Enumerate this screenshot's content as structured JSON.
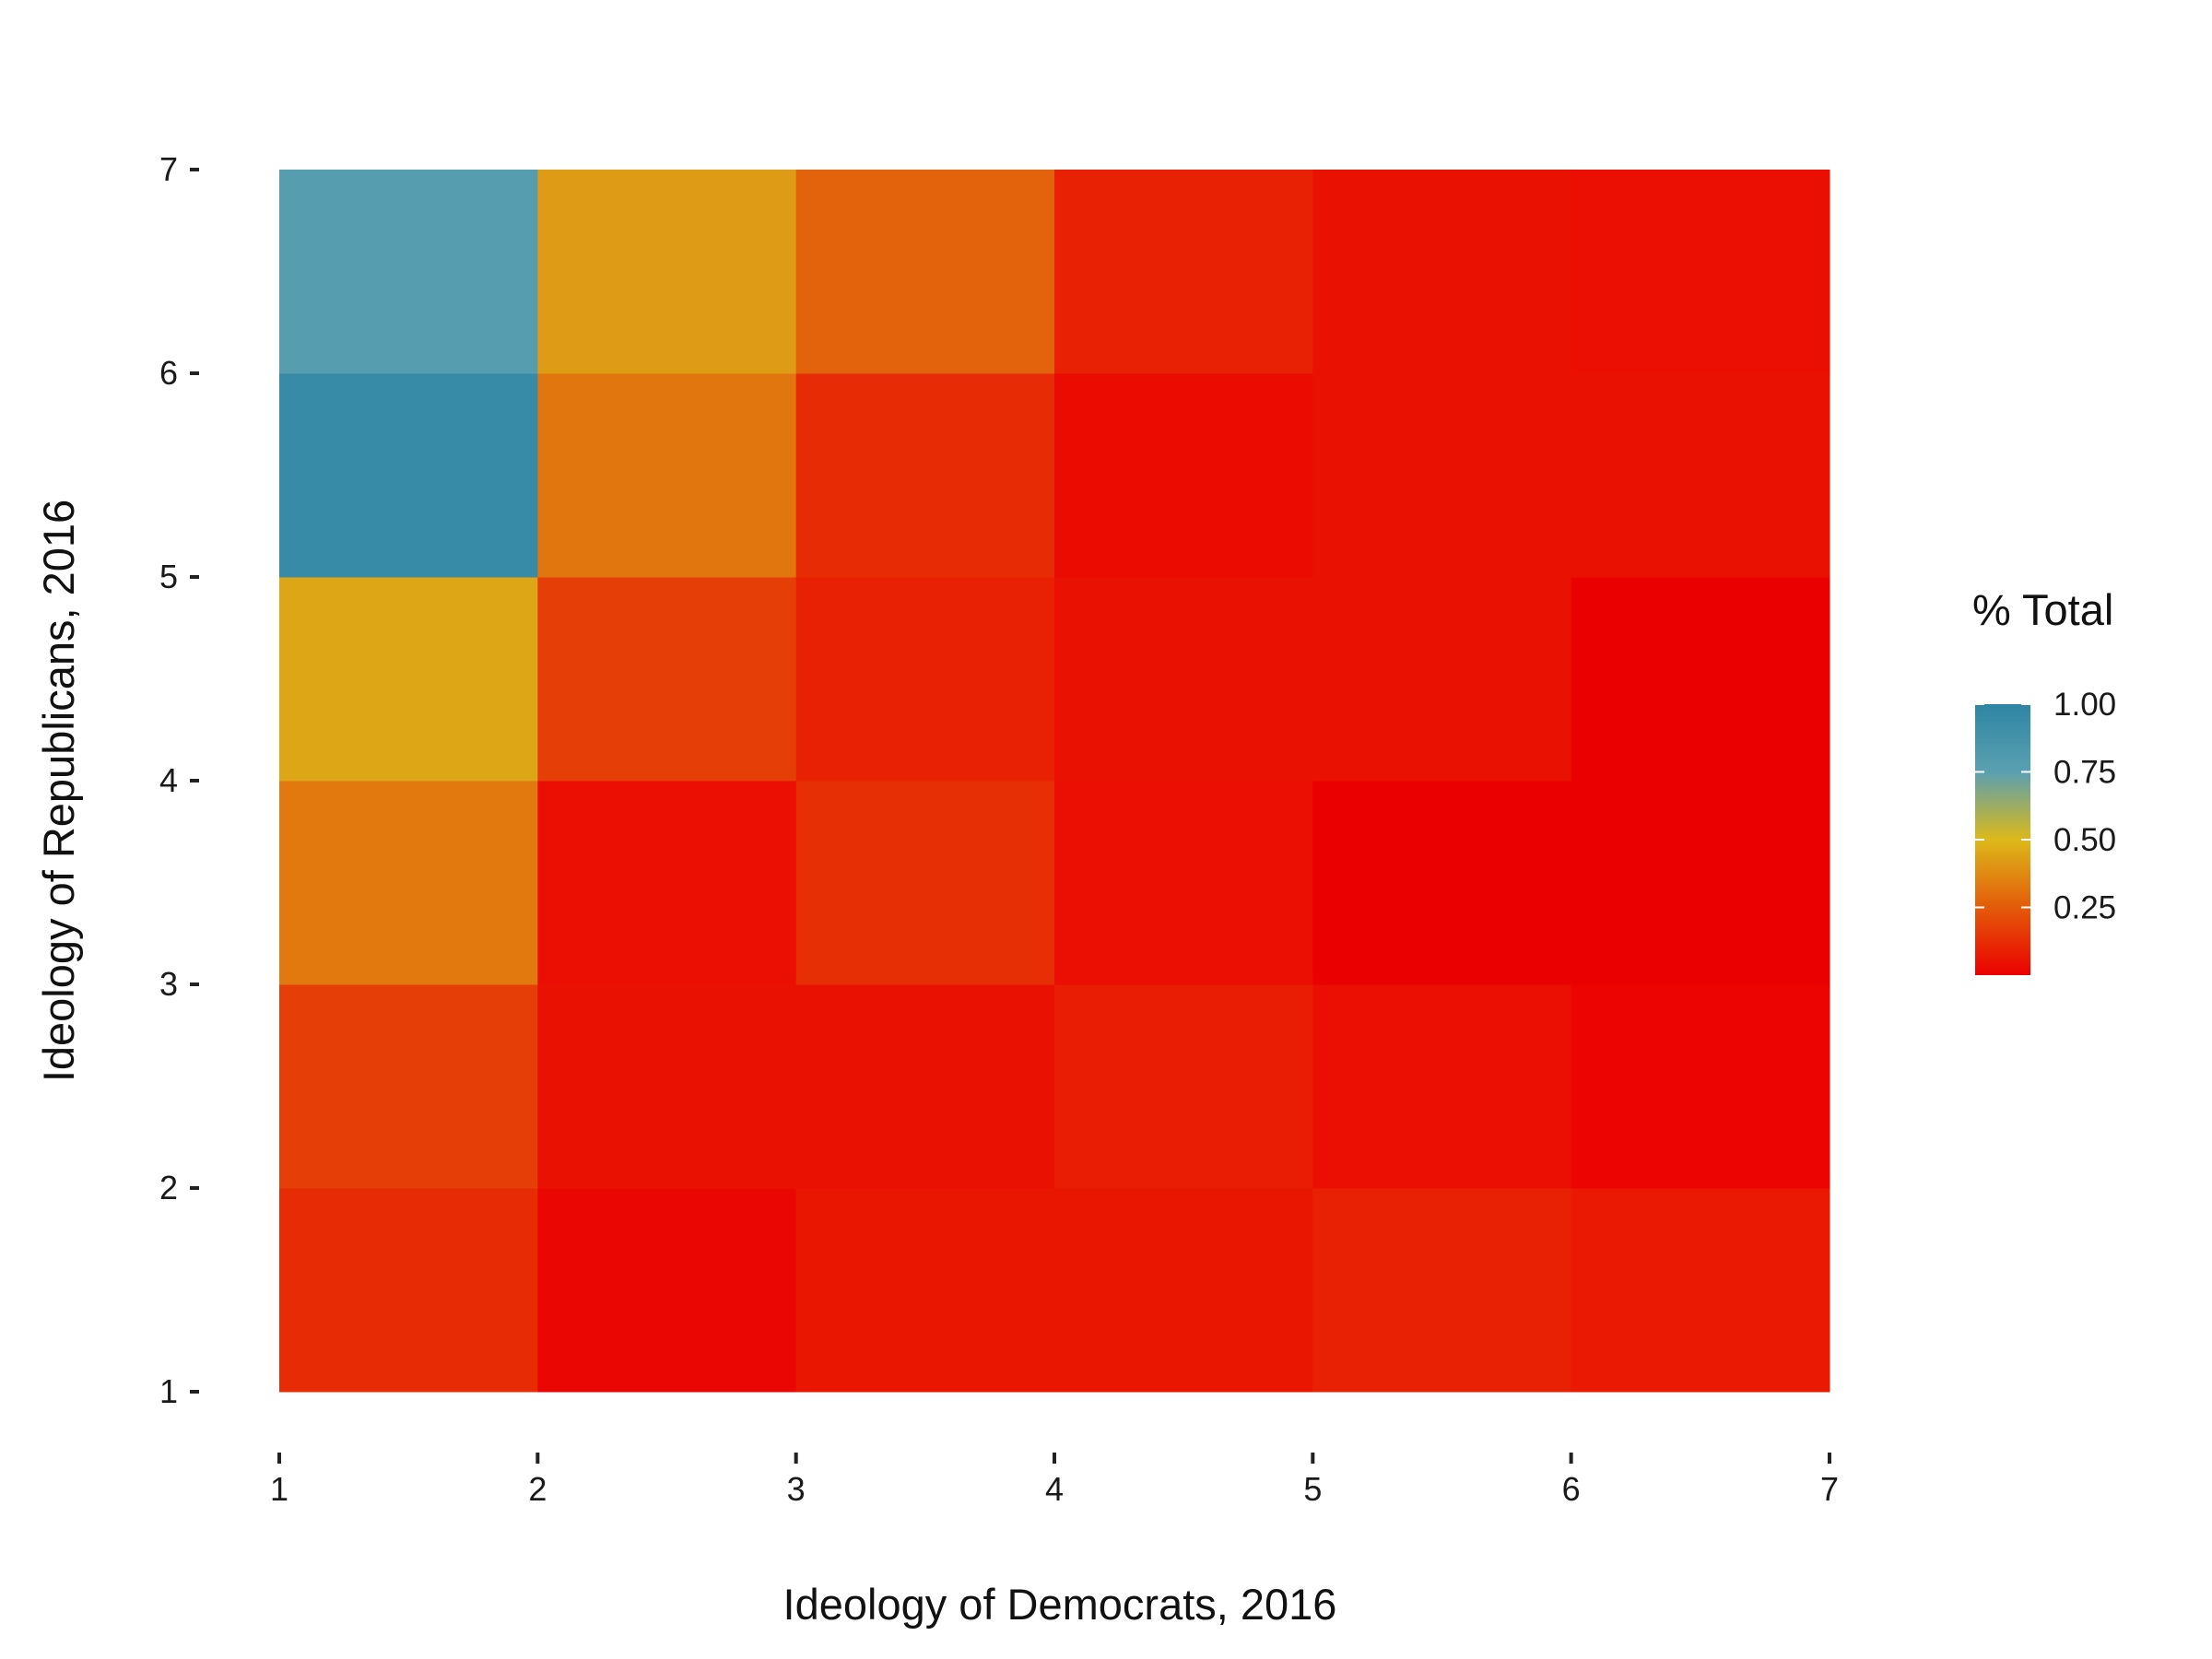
{
  "chart_data": {
    "type": "heatmap",
    "title": "",
    "xlabel": "Ideology of Democrats, 2016",
    "ylabel": "Ideology of Republicans, 2016",
    "x_ticks": [
      1,
      2,
      3,
      4,
      5,
      6,
      7
    ],
    "y_ticks": [
      1,
      2,
      3,
      4,
      5,
      6,
      7
    ],
    "xlim": [
      1,
      7
    ],
    "ylim": [
      1,
      7
    ],
    "grid": false,
    "legend": {
      "title": "% Total",
      "position": "right",
      "ticks": [
        {
          "value": 1.0,
          "label": "1.00"
        },
        {
          "value": 0.75,
          "label": "0.75"
        },
        {
          "value": 0.5,
          "label": "0.50"
        },
        {
          "value": 0.25,
          "label": "0.25"
        }
      ],
      "range": [
        0.0,
        1.0
      ],
      "colors": [
        "#eb0000",
        "#e35b0a",
        "#dcb91a",
        "#5aa0b0",
        "#2e86a4"
      ]
    },
    "cells": [
      {
        "x": 1,
        "y": 1,
        "value": 0.12
      },
      {
        "x": 2,
        "y": 1,
        "value": 0.02
      },
      {
        "x": 3,
        "y": 1,
        "value": 0.06
      },
      {
        "x": 4,
        "y": 1,
        "value": 0.06
      },
      {
        "x": 5,
        "y": 1,
        "value": 0.09
      },
      {
        "x": 6,
        "y": 1,
        "value": 0.07
      },
      {
        "x": 1,
        "y": 2,
        "value": 0.17
      },
      {
        "x": 2,
        "y": 2,
        "value": 0.05
      },
      {
        "x": 3,
        "y": 2,
        "value": 0.05
      },
      {
        "x": 4,
        "y": 2,
        "value": 0.08
      },
      {
        "x": 5,
        "y": 2,
        "value": 0.04
      },
      {
        "x": 6,
        "y": 2,
        "value": 0.01
      },
      {
        "x": 1,
        "y": 3,
        "value": 0.33
      },
      {
        "x": 2,
        "y": 3,
        "value": 0.04
      },
      {
        "x": 3,
        "y": 3,
        "value": 0.13
      },
      {
        "x": 4,
        "y": 3,
        "value": 0.04
      },
      {
        "x": 5,
        "y": 3,
        "value": 0.0
      },
      {
        "x": 6,
        "y": 3,
        "value": 0.0
      },
      {
        "x": 1,
        "y": 4,
        "value": 0.45
      },
      {
        "x": 2,
        "y": 4,
        "value": 0.17
      },
      {
        "x": 3,
        "y": 4,
        "value": 0.09
      },
      {
        "x": 4,
        "y": 4,
        "value": 0.05
      },
      {
        "x": 5,
        "y": 4,
        "value": 0.05
      },
      {
        "x": 6,
        "y": 4,
        "value": 0.0
      },
      {
        "x": 1,
        "y": 5,
        "value": 0.95
      },
      {
        "x": 2,
        "y": 5,
        "value": 0.32
      },
      {
        "x": 3,
        "y": 5,
        "value": 0.12
      },
      {
        "x": 4,
        "y": 5,
        "value": 0.03
      },
      {
        "x": 5,
        "y": 5,
        "value": 0.05
      },
      {
        "x": 6,
        "y": 5,
        "value": 0.05
      },
      {
        "x": 1,
        "y": 6,
        "value": 0.78
      },
      {
        "x": 2,
        "y": 6,
        "value": 0.42
      },
      {
        "x": 3,
        "y": 6,
        "value": 0.27
      },
      {
        "x": 4,
        "y": 6,
        "value": 0.09
      },
      {
        "x": 5,
        "y": 6,
        "value": 0.05
      },
      {
        "x": 6,
        "y": 6,
        "value": 0.04
      }
    ]
  }
}
